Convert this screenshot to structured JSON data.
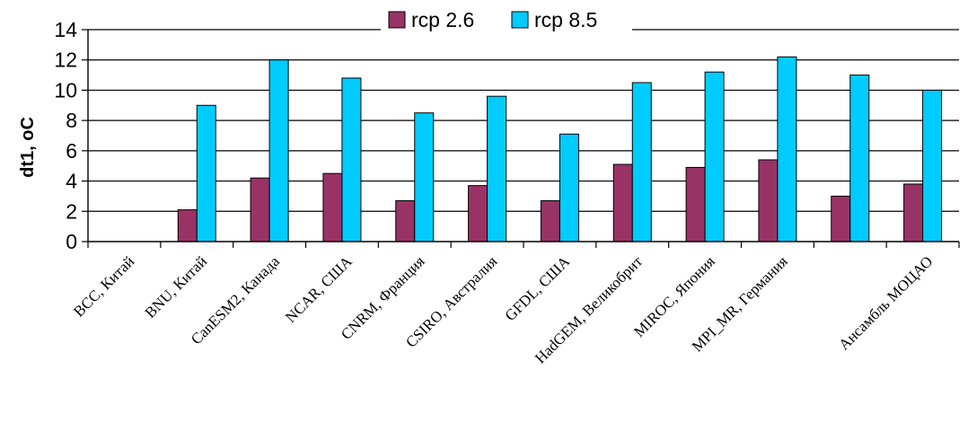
{
  "chart_data": {
    "type": "bar",
    "title": "",
    "xlabel": "",
    "ylabel": "dt1, oC",
    "ylim": [
      0,
      14
    ],
    "yticks": [
      0,
      2,
      4,
      6,
      8,
      10,
      12,
      14
    ],
    "grid": true,
    "legend_position": "top-center",
    "categories": [
      "BCC, Китай",
      "BNU, Китай",
      "CanESM2, Канада",
      "NCAR, США",
      "CNRM, Франция",
      "CSIRO, Австралия",
      "GFDL, США",
      "HadGEM, Великобрит",
      "MIROC, Япония",
      "MPI_MR, Германия",
      "",
      "Ансамбль МОЦАО"
    ],
    "series": [
      {
        "name": "rcp 2.6",
        "color": "#993366",
        "values": [
          null,
          2.1,
          4.2,
          4.5,
          2.7,
          3.7,
          2.7,
          5.1,
          4.9,
          5.4,
          3.0,
          3.8
        ]
      },
      {
        "name": "rcp 8.5",
        "color": "#00CCFF",
        "values": [
          null,
          9.0,
          12.0,
          10.8,
          8.5,
          9.6,
          7.1,
          10.5,
          11.2,
          12.2,
          11.0,
          10.0
        ]
      }
    ]
  }
}
